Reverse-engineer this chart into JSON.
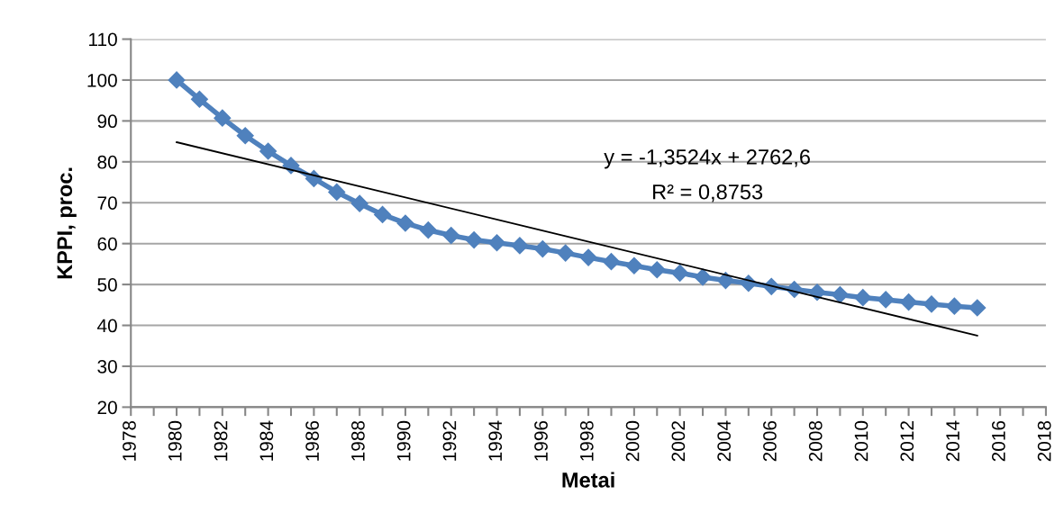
{
  "chart_data": {
    "type": "line",
    "xlabel": "Metai",
    "ylabel": "KPPI, proc.",
    "x": [
      1980,
      1981,
      1982,
      1983,
      1984,
      1985,
      1986,
      1987,
      1988,
      1989,
      1990,
      1991,
      1992,
      1993,
      1994,
      1995,
      1996,
      1997,
      1998,
      1999,
      2000,
      2001,
      2002,
      2003,
      2004,
      2005,
      2006,
      2007,
      2008,
      2009,
      2010,
      2011,
      2012,
      2013,
      2014,
      2015
    ],
    "series": [
      {
        "color": "#4f81bd",
        "marker": "diamond",
        "values": [
          100,
          95.3,
          90.7,
          86.4,
          82.6,
          79.1,
          75.9,
          72.6,
          69.8,
          67.1,
          65.0,
          63.3,
          62.0,
          60.9,
          60.2,
          59.5,
          58.7,
          57.7,
          56.6,
          55.6,
          54.6,
          53.6,
          52.8,
          51.8,
          51.0,
          50.3,
          49.5,
          48.8,
          48.1,
          47.5,
          46.8,
          46.3,
          45.7,
          45.2,
          44.7,
          44.3
        ]
      },
      {
        "color": "#000000",
        "marker": "none",
        "x": [
          1980,
          2015
        ],
        "values": [
          84.8,
          37.5
        ]
      }
    ],
    "annotations": [
      "y = -1,3524x + 2762,6",
      "R² = 0,8753"
    ],
    "xlim": [
      1978,
      2018
    ],
    "xticks": [
      1978,
      {
        "value": 1979,
        "label": null
      },
      1980,
      {
        "value": 1981,
        "label": null
      },
      1982,
      {
        "value": 1983,
        "label": null
      },
      1984,
      {
        "value": 1985,
        "label": null
      },
      1986,
      {
        "value": 1987,
        "label": null
      },
      1988,
      {
        "value": 1989,
        "label": null
      },
      1990,
      {
        "value": 1991,
        "label": null
      },
      1992,
      {
        "value": 1993,
        "label": null
      },
      1994,
      {
        "value": 1995,
        "label": null
      },
      1996,
      {
        "value": 1997,
        "label": null
      },
      1998,
      {
        "value": 1999,
        "label": null
      },
      2000,
      {
        "value": 2001,
        "label": null
      },
      2002,
      {
        "value": 2003,
        "label": null
      },
      2004,
      {
        "value": 2005,
        "label": null
      },
      2006,
      {
        "value": 2007,
        "label": null
      },
      2008,
      {
        "value": 2009,
        "label": null
      },
      2010,
      {
        "value": 2011,
        "label": null
      },
      2012,
      {
        "value": 2013,
        "label": null
      },
      2014,
      {
        "value": 2015,
        "label": null
      },
      2016,
      {
        "value": 2017,
        "label": null
      },
      2018
    ],
    "ylim": [
      20,
      110
    ],
    "yticks": [
      20,
      30,
      40,
      50,
      60,
      70,
      80,
      90,
      100,
      110
    ],
    "grid": "y",
    "legend": false
  }
}
